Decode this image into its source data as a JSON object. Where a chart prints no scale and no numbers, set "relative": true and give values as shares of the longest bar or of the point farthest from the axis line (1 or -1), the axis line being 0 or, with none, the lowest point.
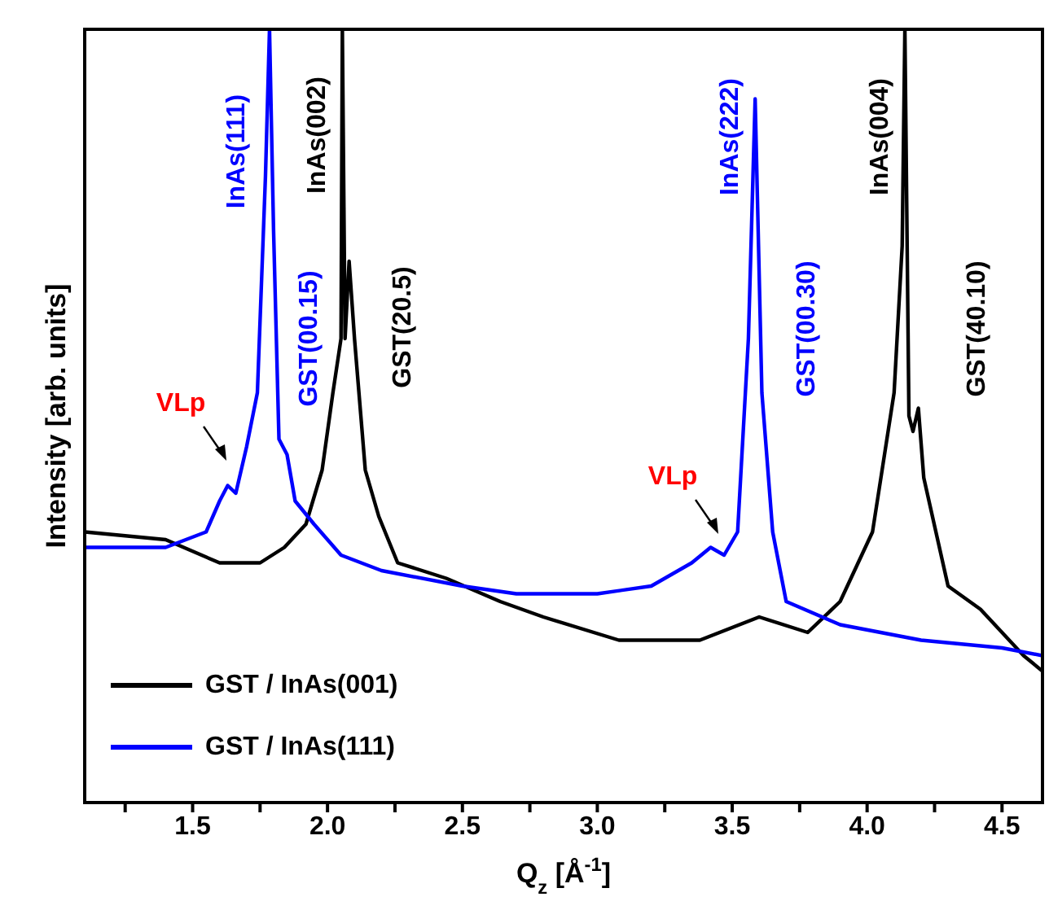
{
  "chart_data": {
    "type": "line",
    "relative": true,
    "xlabel": "Q$_{z}$ [Å$^{-1}$]",
    "ylabel": "Intensity [arb. units]",
    "xlim": [
      1.1,
      4.65
    ],
    "xticks": [
      {
        "value": 1.25,
        "label": null
      },
      1.5,
      {
        "value": 1.75,
        "label": null
      },
      {
        "value": 2,
        "label": "2.0"
      },
      {
        "value": 2.25,
        "label": null
      },
      2.5,
      {
        "value": 2.75,
        "label": null
      },
      {
        "value": 3,
        "label": "3.0"
      },
      {
        "value": 3.25,
        "label": null
      },
      3.5,
      {
        "value": 3.75,
        "label": null
      },
      {
        "value": 4,
        "label": "4.0"
      },
      {
        "value": 4.25,
        "label": null
      },
      4.5
    ],
    "legend": "bottom left",
    "marker": "none",
    "line_style": "solid",
    "series": [
      {
        "name": "GST / InAs(001)",
        "color": "#000000",
        "x": [
          1.1,
          1.4,
          1.6,
          1.75,
          1.84,
          1.92,
          1.98,
          2.02,
          2.05,
          2.055,
          2.065,
          2.08,
          2.1,
          2.14,
          2.19,
          2.26,
          2.44,
          2.64,
          2.8,
          3.08,
          3.38,
          3.6,
          3.78,
          3.9,
          4.02,
          4.1,
          4.13,
          4.14,
          4.155,
          4.17,
          4.19,
          4.21,
          4.3,
          4.42,
          4.58,
          4.65
        ],
        "values": [
          0.35,
          0.34,
          0.31,
          0.31,
          0.33,
          0.36,
          0.43,
          0.53,
          0.6,
          1,
          0.6,
          0.7,
          0.6,
          0.43,
          0.37,
          0.31,
          0.29,
          0.26,
          0.24,
          0.21,
          0.21,
          0.24,
          0.22,
          0.26,
          0.35,
          0.53,
          0.72,
          1,
          0.5,
          0.48,
          0.51,
          0.42,
          0.28,
          0.25,
          0.19,
          0.17
        ]
      },
      {
        "name": "GST / InAs(111)",
        "color": "#0000ff",
        "x": [
          1.1,
          1.4,
          1.55,
          1.6,
          1.63,
          1.66,
          1.7,
          1.74,
          1.77,
          1.785,
          1.8,
          1.82,
          1.85,
          1.88,
          1.95,
          2.05,
          2.2,
          2.5,
          2.7,
          3.0,
          3.2,
          3.35,
          3.42,
          3.47,
          3.52,
          3.56,
          3.585,
          3.61,
          3.65,
          3.7,
          3.9,
          4.2,
          4.5,
          4.65
        ],
        "values": [
          0.33,
          0.33,
          0.35,
          0.39,
          0.41,
          0.4,
          0.46,
          0.53,
          0.81,
          1,
          0.74,
          0.47,
          0.45,
          0.39,
          0.36,
          0.32,
          0.3,
          0.28,
          0.27,
          0.27,
          0.28,
          0.31,
          0.33,
          0.32,
          0.35,
          0.6,
          0.91,
          0.53,
          0.35,
          0.26,
          0.23,
          0.21,
          0.2,
          0.19
        ]
      }
    ],
    "annotations": [
      {
        "text": "InAs(111)",
        "x": 1.785,
        "y": 1
      },
      {
        "text": "InAs(002)",
        "x": 2.055,
        "y": 1
      },
      {
        "text": "GST(00.15)",
        "x": 1.8,
        "y": 0.74
      },
      {
        "text": "GST(20.5)",
        "x": 2.08,
        "y": 0.7
      },
      "VLp",
      "VLp",
      {
        "text": "InAs(222)",
        "x": 3.585,
        "y": 0.91
      },
      {
        "text": "GST(00.30)",
        "x": 3.61,
        "y": 0.53
      },
      {
        "text": "InAs(004)",
        "x": 4.14,
        "y": 1
      },
      {
        "text": "GST(40.10)",
        "x": 4.19,
        "y": 0.51
      }
    ]
  }
}
